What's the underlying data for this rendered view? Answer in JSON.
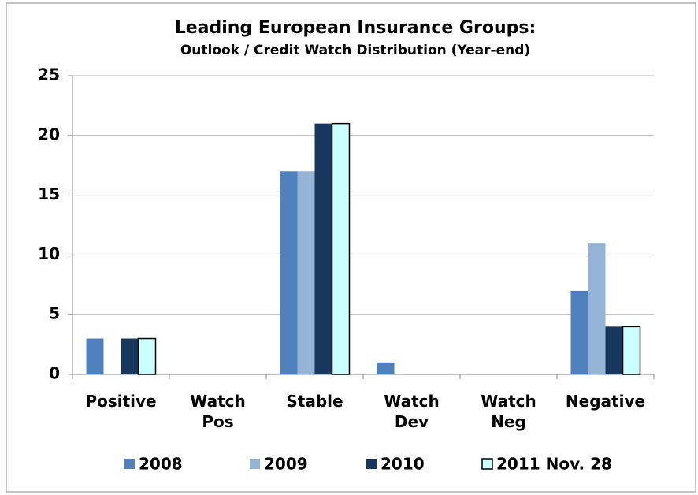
{
  "chart_data": {
    "type": "bar",
    "title": "Leading European Insurance Groups:",
    "subtitle": "Outlook / Credit Watch Distribution (Year-end)",
    "categories": [
      "Positive",
      "Watch\nPos",
      "Stable",
      "Watch\nDev",
      "Watch\nNeg",
      "Negative"
    ],
    "series": [
      {
        "name": "2008",
        "color": "#4f81bd",
        "values": [
          3,
          0,
          17,
          1,
          0,
          7
        ]
      },
      {
        "name": "2009",
        "color": "#95b3d7",
        "values": [
          0,
          0,
          17,
          0,
          0,
          11
        ]
      },
      {
        "name": "2010",
        "color": "#17375e",
        "values": [
          3,
          0,
          21,
          0,
          0,
          4
        ]
      },
      {
        "name": "2011 Nov. 28",
        "color": "#ccffff",
        "values": [
          3,
          0,
          21,
          0,
          0,
          4
        ]
      }
    ],
    "ylim": [
      0,
      25
    ],
    "yticks": [
      0,
      5,
      10,
      15,
      20,
      25
    ],
    "grid": true,
    "legend": "bottom"
  }
}
